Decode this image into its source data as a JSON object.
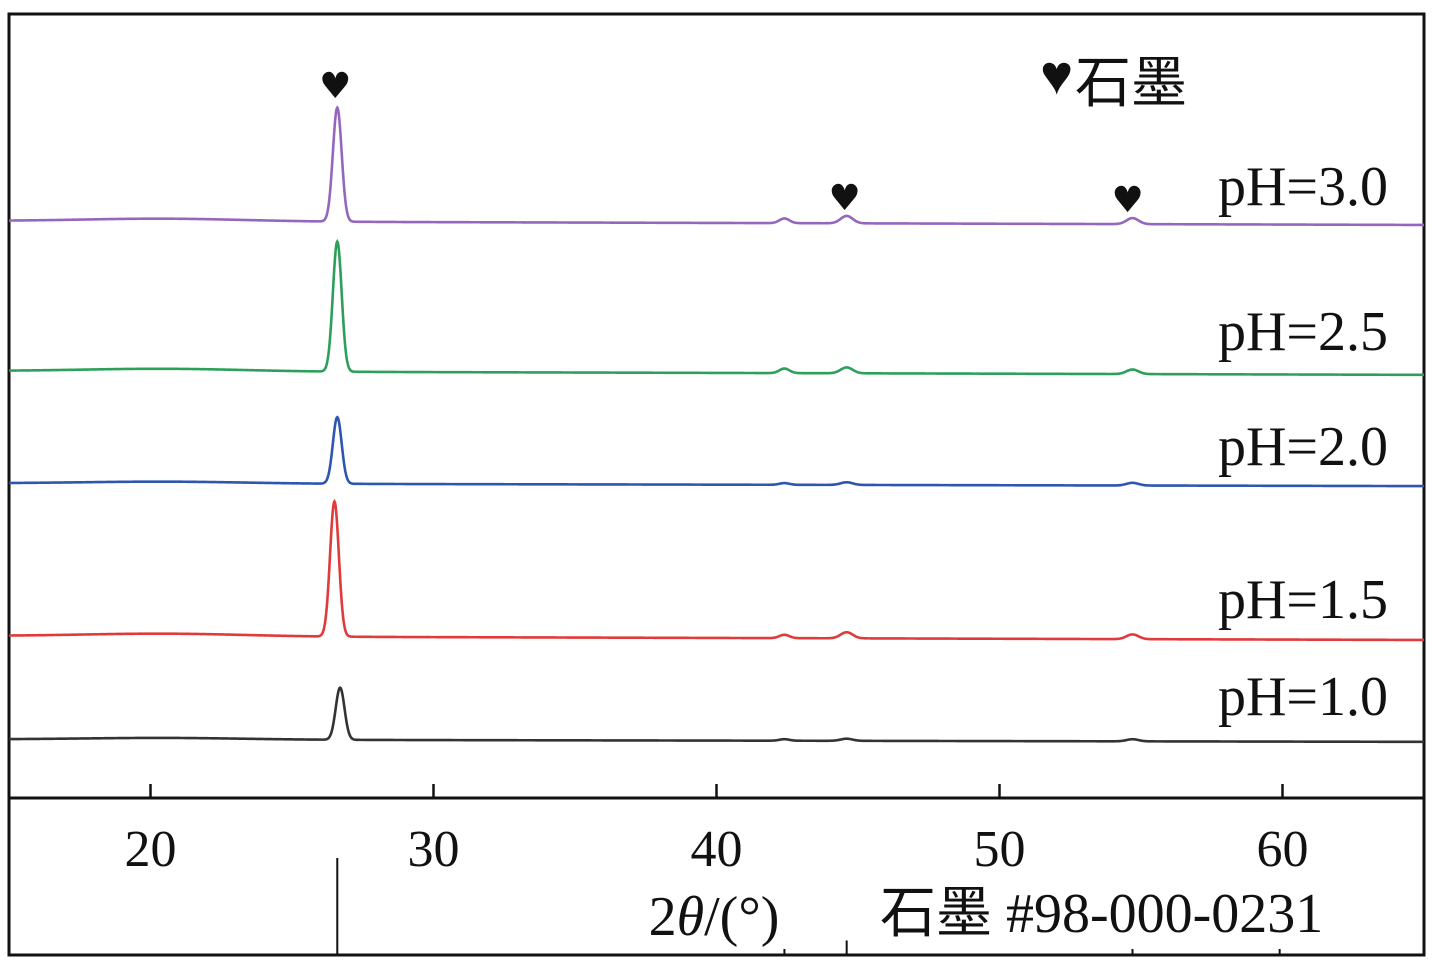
{
  "chart_data": {
    "type": "line",
    "xlabel_prefix": "2",
    "xlabel_theta": "θ",
    "xlabel_suffix": "/(°)",
    "xlim": [
      15,
      65
    ],
    "xticks": [
      20,
      30,
      40,
      50,
      60
    ],
    "xtick_labels": [
      "20",
      "30",
      "40",
      "50",
      "60"
    ],
    "marker_symbol": "♥",
    "legend": {
      "symbol": "♥",
      "label": "石墨",
      "placement": "top-right"
    },
    "marked_peaks": [
      26.6,
      44.6,
      54.6
    ],
    "series": [
      {
        "name": "pH=3.0",
        "color": "#9467bd",
        "baseline": 0.1,
        "peak_height": 0.85,
        "minor": [
          0.035,
          0.055,
          0.045
        ]
      },
      {
        "name": "pH=2.5",
        "color": "#2ca05a",
        "baseline": 0.1,
        "peak_height": 1.0,
        "minor": [
          0.035,
          0.045,
          0.035
        ]
      },
      {
        "name": "pH=2.0",
        "color": "#2e55b0",
        "baseline": 0.1,
        "peak_height": 0.7,
        "minor": [
          0.018,
          0.028,
          0.028
        ]
      },
      {
        "name": "pH=1.5",
        "color": "#e03a3a",
        "baseline": 0.1,
        "peak_height": 1.0,
        "minor": [
          0.025,
          0.045,
          0.035
        ]
      },
      {
        "name": "pH=1.0",
        "color": "#333333",
        "baseline": 0.1,
        "peak_height": 0.62,
        "minor": [
          0.018,
          0.025,
          0.025
        ]
      }
    ],
    "reference": {
      "label": "石墨 #98-000-0231",
      "lines": [
        {
          "x": 26.6,
          "intensity": 1.0
        },
        {
          "x": 42.4,
          "intensity": 0.03
        },
        {
          "x": 44.6,
          "intensity": 0.15
        },
        {
          "x": 54.7,
          "intensity": 0.05
        },
        {
          "x": 59.9,
          "intensity": 0.02
        }
      ]
    },
    "grid": false
  }
}
